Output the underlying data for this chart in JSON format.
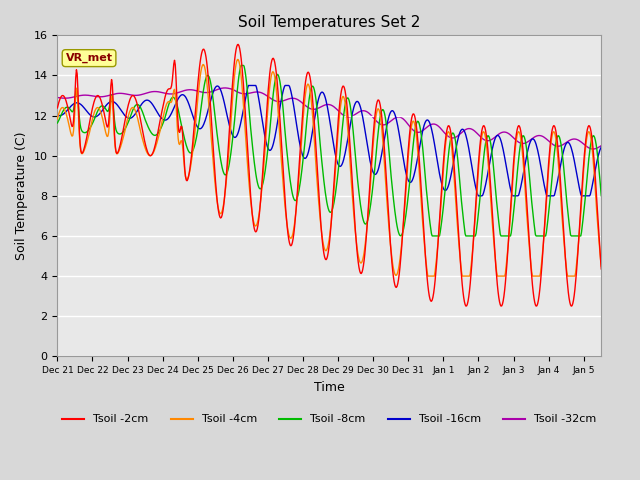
{
  "title": "Soil Temperatures Set 2",
  "xlabel": "Time",
  "ylabel": "Soil Temperature (C)",
  "ylim": [
    0,
    16
  ],
  "yticks": [
    0,
    2,
    4,
    6,
    8,
    10,
    12,
    14,
    16
  ],
  "colors": {
    "tsoil_2cm": "#ff0000",
    "tsoil_4cm": "#ff8800",
    "tsoil_8cm": "#00bb00",
    "tsoil_16cm": "#0000cc",
    "tsoil_32cm": "#aa00aa"
  },
  "legend_labels": [
    "Tsoil -2cm",
    "Tsoil -4cm",
    "Tsoil -8cm",
    "Tsoil -16cm",
    "Tsoil -32cm"
  ],
  "vr_met_label": "VR_met",
  "annotation_box_color": "#ffff99",
  "annotation_text_color": "#880000",
  "plot_bg_color": "#e8e8e8",
  "fig_bg_color": "#d8d8d8",
  "n_days": 15.5,
  "tick_positions": [
    0,
    1,
    2,
    3,
    4,
    5,
    6,
    7,
    8,
    9,
    10,
    11,
    12,
    13,
    14,
    15
  ],
  "tick_labels": [
    "Dec 21",
    "Dec 22",
    "Dec 23",
    "Dec 24",
    "Dec 25",
    "Dec 26",
    "Dec 27",
    "Dec 28",
    "Dec 29",
    "Dec 30",
    "Dec 31",
    "Jan 1",
    "Jan 2",
    "Jan 3",
    "Jan 4",
    "Jan 5"
  ]
}
